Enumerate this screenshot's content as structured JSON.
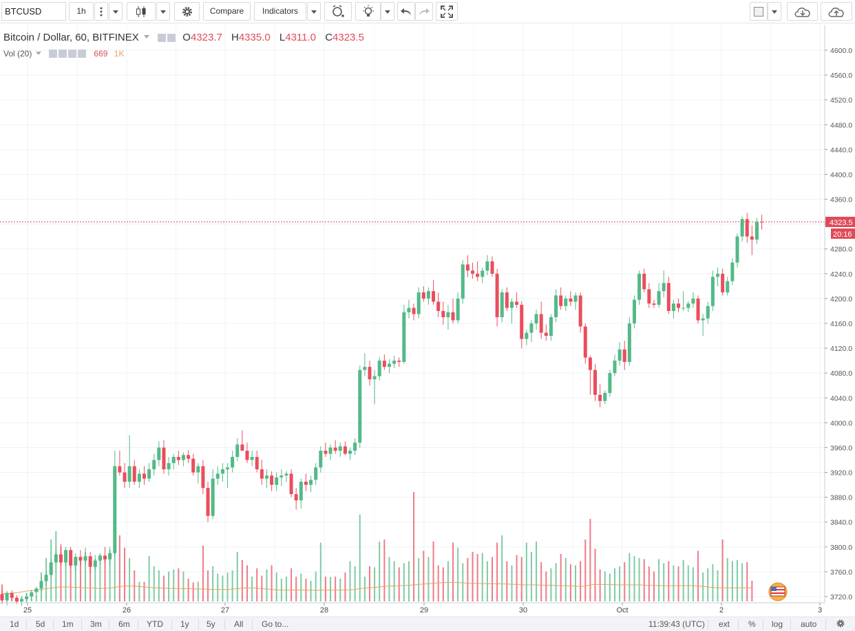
{
  "toolbar": {
    "symbol": "BTCUSD",
    "interval": "1h",
    "compare_label": "Compare",
    "indicators_label": "Indicators"
  },
  "legend": {
    "name": "Bitcoin / Dollar, 60, BITFINEX",
    "o_label": "O",
    "o_value": "4323.7",
    "h_label": "H",
    "h_value": "4335.0",
    "l_label": "L",
    "l_value": "4311.0",
    "c_label": "C",
    "c_value": "4323.5"
  },
  "volume_legend": {
    "label": "Vol (20)",
    "value": "669",
    "ma_value": "1K"
  },
  "price_tag": {
    "price": "4323.5",
    "countdown": "20:16"
  },
  "bottom": {
    "ranges": [
      "1d",
      "5d",
      "1m",
      "3m",
      "6m",
      "YTD",
      "1y",
      "5y",
      "All"
    ],
    "goto_label": "Go to...",
    "time": "11:39:43 (UTC)",
    "ext": "ext",
    "percent": "%",
    "log": "log",
    "auto": "auto"
  },
  "colors": {
    "up": "#53b987",
    "down": "#eb4d5c",
    "ma": "#e8a15a",
    "price_line": "#e04b58"
  },
  "chart_data": {
    "type": "candlestick",
    "title": "Bitcoin / Dollar, 60, BITFINEX",
    "y_ticks": [
      3720,
      3760,
      3800,
      3840,
      3880,
      3920,
      3960,
      4000,
      4040,
      4080,
      4120,
      4160,
      4200,
      4240,
      4280,
      4320,
      4360,
      4400,
      4440,
      4480,
      4520,
      4560,
      4600
    ],
    "ylim": [
      3708,
      4622
    ],
    "x_labels": [
      "25",
      "26",
      "27",
      "28",
      "29",
      "30",
      "Oct",
      "2",
      "3"
    ],
    "grid": true,
    "last_price": 4323.5,
    "candles_ohlc": [
      [
        3724,
        3731,
        3708,
        3714
      ],
      [
        3714,
        3729,
        3706,
        3726
      ],
      [
        3726,
        3730,
        3714,
        3718
      ],
      [
        3718,
        3722,
        3708,
        3712
      ],
      [
        3712,
        3720,
        3705,
        3716
      ],
      [
        3716,
        3724,
        3710,
        3720
      ],
      [
        3720,
        3731,
        3714,
        3727
      ],
      [
        3727,
        3736,
        3722,
        3733
      ],
      [
        3733,
        3752,
        3728,
        3745
      ],
      [
        3745,
        3760,
        3738,
        3755
      ],
      [
        3755,
        3780,
        3750,
        3775
      ],
      [
        3775,
        3795,
        3772,
        3788
      ],
      [
        3788,
        3805,
        3770,
        3775
      ],
      [
        3775,
        3800,
        3770,
        3795
      ],
      [
        3795,
        3800,
        3765,
        3770
      ],
      [
        3770,
        3790,
        3762,
        3784
      ],
      [
        3784,
        3795,
        3770,
        3778
      ],
      [
        3778,
        3799,
        3772,
        3785
      ],
      [
        3785,
        3792,
        3758,
        3768
      ],
      [
        3768,
        3787,
        3762,
        3778
      ],
      [
        3778,
        3790,
        3772,
        3786
      ],
      [
        3786,
        3800,
        3775,
        3780
      ],
      [
        3780,
        3800,
        3770,
        3790
      ],
      [
        3790,
        3955,
        3785,
        3930
      ],
      [
        3930,
        3955,
        3915,
        3920
      ],
      [
        3920,
        3935,
        3895,
        3905
      ],
      [
        3905,
        3980,
        3895,
        3930
      ],
      [
        3930,
        3940,
        3900,
        3905
      ],
      [
        3905,
        3925,
        3895,
        3918
      ],
      [
        3918,
        3930,
        3900,
        3910
      ],
      [
        3910,
        3935,
        3905,
        3925
      ],
      [
        3925,
        3950,
        3915,
        3940
      ],
      [
        3940,
        3970,
        3930,
        3960
      ],
      [
        3960,
        3972,
        3918,
        3925
      ],
      [
        3925,
        3945,
        3915,
        3935
      ],
      [
        3935,
        3950,
        3925,
        3945
      ],
      [
        3945,
        3955,
        3932,
        3940
      ],
      [
        3940,
        3952,
        3930,
        3948
      ],
      [
        3948,
        3956,
        3935,
        3942
      ],
      [
        3942,
        3950,
        3915,
        3920
      ],
      [
        3920,
        3935,
        3902,
        3930
      ],
      [
        3930,
        3940,
        3885,
        3895
      ],
      [
        3895,
        3905,
        3840,
        3850
      ],
      [
        3850,
        3925,
        3845,
        3910
      ],
      [
        3910,
        3930,
        3900,
        3918
      ],
      [
        3918,
        3935,
        3905,
        3925
      ],
      [
        3925,
        3935,
        3895,
        3928
      ],
      [
        3928,
        3955,
        3920,
        3945
      ],
      [
        3945,
        3975,
        3938,
        3965
      ],
      [
        3965,
        3988,
        3955,
        3955
      ],
      [
        3955,
        3968,
        3935,
        3940
      ],
      [
        3940,
        3955,
        3930,
        3945
      ],
      [
        3945,
        3955,
        3920,
        3925
      ],
      [
        3925,
        3940,
        3900,
        3910
      ],
      [
        3910,
        3925,
        3895,
        3915
      ],
      [
        3915,
        3922,
        3890,
        3900
      ],
      [
        3900,
        3920,
        3890,
        3912
      ],
      [
        3912,
        3925,
        3898,
        3915
      ],
      [
        3915,
        3922,
        3905,
        3918
      ],
      [
        3918,
        3925,
        3880,
        3885
      ],
      [
        3885,
        3895,
        3860,
        3875
      ],
      [
        3875,
        3910,
        3862,
        3905
      ],
      [
        3905,
        3918,
        3890,
        3900
      ],
      [
        3900,
        3915,
        3888,
        3908
      ],
      [
        3908,
        3935,
        3900,
        3928
      ],
      [
        3928,
        3962,
        3920,
        3955
      ],
      [
        3955,
        3968,
        3945,
        3950
      ],
      [
        3950,
        3965,
        3940,
        3960
      ],
      [
        3960,
        3972,
        3950,
        3955
      ],
      [
        3955,
        3968,
        3945,
        3962
      ],
      [
        3962,
        3970,
        3948,
        3950
      ],
      [
        3950,
        3960,
        3940,
        3955
      ],
      [
        3955,
        3975,
        3948,
        3968
      ],
      [
        3968,
        4092,
        3960,
        4085
      ],
      [
        4085,
        4112,
        4075,
        4090
      ],
      [
        4090,
        4100,
        4060,
        4070
      ],
      [
        4070,
        4085,
        4030,
        4075
      ],
      [
        4075,
        4105,
        4068,
        4100
      ],
      [
        4100,
        4110,
        4085,
        4090
      ],
      [
        4090,
        4102,
        4080,
        4095
      ],
      [
        4095,
        4108,
        4088,
        4100
      ],
      [
        4100,
        4105,
        4090,
        4098
      ],
      [
        4098,
        4190,
        4095,
        4178
      ],
      [
        4178,
        4198,
        4168,
        4185
      ],
      [
        4185,
        4192,
        4165,
        4175
      ],
      [
        4175,
        4218,
        4168,
        4210
      ],
      [
        4210,
        4220,
        4195,
        4200
      ],
      [
        4200,
        4218,
        4190,
        4212
      ],
      [
        4212,
        4230,
        4190,
        4195
      ],
      [
        4195,
        4210,
        4170,
        4180
      ],
      [
        4180,
        4195,
        4158,
        4170
      ],
      [
        4170,
        4190,
        4150,
        4178
      ],
      [
        4178,
        4200,
        4160,
        4165
      ],
      [
        4165,
        4210,
        4160,
        4200
      ],
      [
        4200,
        4262,
        4192,
        4255
      ],
      [
        4255,
        4270,
        4235,
        4245
      ],
      [
        4245,
        4258,
        4232,
        4240
      ],
      [
        4240,
        4260,
        4228,
        4235
      ],
      [
        4235,
        4250,
        4225,
        4245
      ],
      [
        4245,
        4270,
        4238,
        4260
      ],
      [
        4260,
        4268,
        4235,
        4240
      ],
      [
        4240,
        4248,
        4155,
        4170
      ],
      [
        4170,
        4215,
        4162,
        4210
      ],
      [
        4210,
        4218,
        4180,
        4185
      ],
      [
        4185,
        4200,
        4160,
        4195
      ],
      [
        4195,
        4210,
        4185,
        4190
      ],
      [
        4190,
        4196,
        4120,
        4135
      ],
      [
        4135,
        4150,
        4125,
        4145
      ],
      [
        4145,
        4165,
        4130,
        4160
      ],
      [
        4160,
        4182,
        4150,
        4175
      ],
      [
        4175,
        4195,
        4135,
        4145
      ],
      [
        4145,
        4158,
        4132,
        4140
      ],
      [
        4140,
        4175,
        4132,
        4170
      ],
      [
        4170,
        4215,
        4162,
        4205
      ],
      [
        4205,
        4218,
        4182,
        4188
      ],
      [
        4188,
        4205,
        4180,
        4200
      ],
      [
        4200,
        4212,
        4188,
        4195
      ],
      [
        4195,
        4210,
        4182,
        4205
      ],
      [
        4205,
        4210,
        4145,
        4155
      ],
      [
        4155,
        4160,
        4095,
        4105
      ],
      [
        4105,
        4108,
        4045,
        4085
      ],
      [
        4085,
        4095,
        4035,
        4045
      ],
      [
        4045,
        4062,
        4025,
        4035
      ],
      [
        4035,
        4052,
        4030,
        4048
      ],
      [
        4048,
        4085,
        4042,
        4080
      ],
      [
        4080,
        4110,
        4075,
        4100
      ],
      [
        4100,
        4130,
        4092,
        4118
      ],
      [
        4118,
        4132,
        4085,
        4098
      ],
      [
        4098,
        4170,
        4092,
        4160
      ],
      [
        4160,
        4205,
        4152,
        4198
      ],
      [
        4198,
        4245,
        4190,
        4240
      ],
      [
        4240,
        4248,
        4210,
        4215
      ],
      [
        4215,
        4225,
        4185,
        4192
      ],
      [
        4192,
        4198,
        4185,
        4190
      ],
      [
        4190,
        4225,
        4185,
        4212
      ],
      [
        4212,
        4245,
        4202,
        4225
      ],
      [
        4225,
        4235,
        4175,
        4180
      ],
      [
        4180,
        4198,
        4168,
        4192
      ],
      [
        4192,
        4200,
        4178,
        4185
      ],
      [
        4185,
        4212,
        4180,
        4185
      ],
      [
        4185,
        4196,
        4178,
        4192
      ],
      [
        4192,
        4210,
        4185,
        4200
      ],
      [
        4200,
        4205,
        4160,
        4165
      ],
      [
        4165,
        4175,
        4140,
        4168
      ],
      [
        4168,
        4195,
        4160,
        4188
      ],
      [
        4188,
        4245,
        4180,
        4235
      ],
      [
        4235,
        4250,
        4220,
        4240
      ],
      [
        4240,
        4248,
        4205,
        4210
      ],
      [
        4210,
        4235,
        4205,
        4228
      ],
      [
        4228,
        4265,
        4222,
        4258
      ],
      [
        4258,
        4305,
        4250,
        4300
      ],
      [
        4300,
        4332,
        4292,
        4328
      ],
      [
        4328,
        4338,
        4290,
        4300
      ],
      [
        4300,
        4318,
        4270,
        4295
      ],
      [
        4295,
        4330,
        4288,
        4323.7
      ],
      [
        4323.7,
        4335,
        4311,
        4323.5
      ]
    ],
    "volume_values": [
      82,
      22,
      18,
      20,
      25,
      42,
      20,
      30,
      140,
      210,
      300,
      340,
      265,
      230,
      205,
      180,
      215,
      240,
      190,
      205,
      225,
      210,
      250,
      270,
      320,
      260,
      210,
      150,
      95,
      95,
      220,
      170,
      150,
      125,
      145,
      155,
      160,
      145,
      110,
      92,
      95,
      270,
      150,
      170,
      135,
      125,
      140,
      150,
      240,
      200,
      175,
      120,
      160,
      125,
      155,
      175,
      140,
      110,
      120,
      160,
      120,
      135,
      110,
      100,
      145,
      285,
      120,
      118,
      120,
      110,
      140,
      195,
      170,
      420,
      120,
      170,
      165,
      290,
      300,
      215,
      195,
      165,
      185,
      195,
      530,
      210,
      245,
      215,
      290,
      175,
      165,
      195,
      285,
      260,
      185,
      210,
      240,
      230,
      235,
      195,
      215,
      285,
      320,
      195,
      175,
      225,
      215,
      285,
      240,
      290,
      190,
      145,
      160,
      185,
      230,
      210,
      180,
      175,
      195,
      300,
      400,
      255,
      155,
      145,
      135,
      160,
      170,
      190,
      235,
      220,
      210,
      205,
      170,
      145,
      205,
      185,
      195,
      175,
      170,
      200,
      175,
      165,
      245,
      140,
      160,
      180,
      150,
      300,
      210,
      195,
      200,
      185,
      190,
      100
    ],
    "volume_ma": [
      38,
      38,
      40,
      42,
      46,
      50,
      53,
      55,
      58,
      62,
      65,
      68,
      70,
      70,
      69,
      68,
      67,
      66,
      65,
      64,
      63,
      63,
      65,
      68,
      72,
      74,
      75,
      74,
      72,
      70,
      68,
      66,
      65,
      64,
      63,
      63,
      62,
      62,
      62,
      61,
      60,
      60,
      59,
      58,
      58,
      58,
      58,
      60,
      62,
      64,
      66,
      65,
      64,
      62,
      60,
      58,
      56,
      55,
      55,
      55,
      55,
      55,
      55,
      54,
      54,
      55,
      55,
      55,
      55,
      55,
      55,
      56,
      58,
      62,
      64,
      66,
      68,
      70,
      72,
      74,
      75,
      76,
      77,
      78,
      80,
      82,
      84,
      86,
      88,
      90,
      91,
      92,
      92,
      91,
      90,
      88,
      88,
      87,
      86,
      86,
      86,
      86,
      85,
      84,
      83,
      82,
      80,
      80,
      80,
      80,
      79,
      78,
      78,
      77,
      76,
      76,
      75,
      74,
      72,
      75,
      80,
      82,
      82,
      82,
      82,
      81,
      80,
      80,
      80,
      80,
      80,
      79,
      78,
      77,
      77,
      76,
      76,
      76,
      76,
      76,
      77,
      76,
      75,
      72,
      70,
      68,
      66,
      66,
      66,
      66,
      66,
      66,
      66,
      66
    ]
  }
}
